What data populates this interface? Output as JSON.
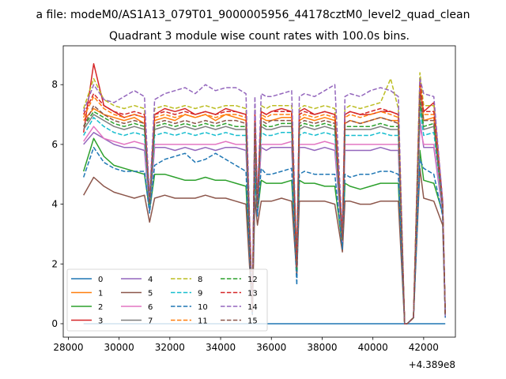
{
  "figure": {
    "suptitle": "a file: modeM0/AS1A13_079T01_9000005956_44178cztM0_level2_quad_clean",
    "title": "Quadrant 3 module wise count rates with 100.0s bins.",
    "x_offset_label": "+4.389e8"
  },
  "chart_data": {
    "type": "line",
    "title": "Quadrant 3 module wise count rates with 100.0s bins.",
    "xlabel": "",
    "ylabel": "",
    "xlim": [
      27800,
      43250
    ],
    "ylim": [
      -0.45,
      9.3
    ],
    "x_offset": 438900000,
    "xticks": [
      28000,
      30000,
      32000,
      34000,
      36000,
      38000,
      40000,
      42000
    ],
    "yticks": [
      0,
      2,
      4,
      6,
      8
    ],
    "grid": false,
    "legend_position": "lower-left",
    "legend_ncol": 4,
    "x": [
      28600,
      29000,
      29400,
      29800,
      30200,
      30600,
      31000,
      31200,
      31400,
      31800,
      32200,
      32600,
      33000,
      33400,
      33800,
      34200,
      34600,
      35000,
      35250,
      35350,
      35450,
      35600,
      35800,
      36000,
      36400,
      36800,
      37000,
      37100,
      37300,
      37700,
      38100,
      38500,
      38800,
      38900,
      39100,
      39500,
      39900,
      40300,
      40700,
      41000,
      41250,
      41350,
      41600,
      41850,
      42000,
      42400,
      42750,
      42850
    ],
    "series": [
      {
        "name": "0",
        "style": "solid",
        "color": "#1f77b4",
        "values": [
          0,
          0,
          0,
          0,
          0,
          0,
          0,
          0,
          0,
          0,
          0,
          0,
          0,
          0,
          0,
          0,
          0,
          0,
          0,
          0,
          0,
          0,
          0,
          0,
          0,
          0,
          0,
          0,
          0,
          0,
          0,
          0,
          0,
          0,
          0,
          0,
          0,
          0,
          0,
          0,
          0,
          0,
          0,
          0,
          0,
          0,
          0,
          0
        ]
      },
      {
        "name": "1",
        "style": "solid",
        "color": "#ff7f0e",
        "values": [
          6.8,
          7.2,
          7.0,
          6.9,
          6.8,
          6.9,
          6.7,
          4.0,
          6.8,
          6.9,
          6.8,
          7.0,
          6.9,
          7.0,
          6.8,
          7.0,
          6.9,
          6.8,
          0.4,
          6.8,
          4.0,
          6.9,
          6.8,
          6.8,
          6.9,
          6.9,
          1.8,
          6.8,
          6.9,
          6.8,
          6.9,
          6.8,
          2.8,
          6.7,
          6.8,
          6.7,
          6.8,
          6.9,
          6.8,
          6.8,
          0.0,
          0.0,
          0.2,
          8.1,
          6.8,
          6.9,
          4.0,
          0.3
        ]
      },
      {
        "name": "2",
        "style": "solid",
        "color": "#2ca02c",
        "values": [
          5.1,
          6.2,
          5.6,
          5.3,
          5.2,
          5.1,
          5.0,
          3.8,
          5.0,
          5.0,
          4.9,
          4.8,
          4.8,
          4.9,
          4.8,
          4.8,
          4.7,
          4.6,
          0.4,
          4.9,
          3.7,
          4.8,
          4.7,
          4.7,
          4.7,
          4.8,
          1.8,
          4.8,
          4.7,
          4.7,
          4.6,
          4.6,
          2.6,
          4.7,
          4.6,
          4.5,
          4.6,
          4.7,
          4.7,
          4.7,
          0.0,
          0.0,
          0.2,
          5.8,
          4.8,
          4.7,
          3.7,
          0.3
        ]
      },
      {
        "name": "3",
        "style": "solid",
        "color": "#d62728",
        "values": [
          6.4,
          8.7,
          7.3,
          7.1,
          6.9,
          7.0,
          6.9,
          4.1,
          7.0,
          7.2,
          7.1,
          7.2,
          7.0,
          7.1,
          7.0,
          7.2,
          7.1,
          7.0,
          0.4,
          7.0,
          4.0,
          7.1,
          7.0,
          7.1,
          7.2,
          7.1,
          1.9,
          7.1,
          7.2,
          7.0,
          7.1,
          7.0,
          2.9,
          7.0,
          7.1,
          7.0,
          7.0,
          7.1,
          7.1,
          7.0,
          0.0,
          0.0,
          0.2,
          7.8,
          7.1,
          7.4,
          4.1,
          0.3
        ]
      },
      {
        "name": "4",
        "style": "solid",
        "color": "#9467bd",
        "values": [
          6.0,
          6.4,
          6.2,
          6.0,
          5.9,
          5.9,
          5.8,
          3.8,
          5.9,
          5.9,
          5.8,
          5.9,
          5.8,
          5.9,
          5.8,
          5.9,
          5.9,
          5.8,
          0.3,
          5.8,
          3.7,
          5.9,
          5.8,
          5.9,
          5.9,
          5.9,
          1.7,
          5.9,
          5.9,
          5.8,
          5.9,
          5.8,
          2.7,
          5.8,
          5.8,
          5.8,
          5.8,
          5.9,
          5.8,
          5.8,
          0.0,
          0.0,
          0.2,
          6.8,
          5.9,
          5.9,
          3.7,
          0.2
        ]
      },
      {
        "name": "5",
        "style": "solid",
        "color": "#8c564b",
        "values": [
          4.3,
          4.9,
          4.6,
          4.4,
          4.3,
          4.2,
          4.3,
          3.4,
          4.2,
          4.3,
          4.2,
          4.2,
          4.2,
          4.3,
          4.2,
          4.2,
          4.1,
          4.0,
          0.3,
          4.2,
          3.3,
          4.1,
          4.1,
          4.1,
          4.2,
          4.1,
          1.6,
          4.1,
          4.1,
          4.1,
          4.1,
          4.0,
          2.4,
          4.1,
          4.1,
          4.0,
          4.0,
          4.1,
          4.1,
          4.1,
          0.0,
          0.0,
          0.2,
          5.2,
          4.2,
          4.1,
          3.3,
          0.3
        ]
      },
      {
        "name": "6",
        "style": "solid",
        "color": "#e377c2",
        "values": [
          6.1,
          6.6,
          6.2,
          6.1,
          6.0,
          6.1,
          6.0,
          3.9,
          6.0,
          6.0,
          6.0,
          6.0,
          6.0,
          6.0,
          6.0,
          6.1,
          6.0,
          6.0,
          0.4,
          6.0,
          3.8,
          6.0,
          6.0,
          6.0,
          6.0,
          6.1,
          1.8,
          6.0,
          6.0,
          6.0,
          6.1,
          6.0,
          2.7,
          6.0,
          6.0,
          6.0,
          6.0,
          6.0,
          6.0,
          6.0,
          0.0,
          0.0,
          0.2,
          6.6,
          6.0,
          6.0,
          3.8,
          0.3
        ]
      },
      {
        "name": "7",
        "style": "solid",
        "color": "#7f7f7f",
        "values": [
          6.5,
          7.0,
          6.8,
          6.6,
          6.5,
          6.6,
          6.5,
          4.0,
          6.5,
          6.6,
          6.5,
          6.6,
          6.5,
          6.6,
          6.5,
          6.6,
          6.5,
          6.5,
          0.4,
          6.5,
          3.9,
          6.6,
          6.5,
          6.5,
          6.6,
          6.6,
          1.8,
          6.5,
          6.6,
          6.5,
          6.6,
          6.5,
          2.8,
          6.5,
          6.5,
          6.5,
          6.5,
          6.6,
          6.5,
          6.5,
          0.0,
          0.0,
          0.2,
          7.4,
          6.5,
          6.6,
          3.9,
          0.3
        ]
      },
      {
        "name": "8",
        "style": "dashed",
        "color": "#bcbd22",
        "values": [
          7.2,
          8.2,
          7.5,
          7.3,
          7.2,
          7.3,
          7.2,
          4.1,
          7.2,
          7.3,
          7.2,
          7.3,
          7.2,
          7.3,
          7.2,
          7.3,
          7.3,
          7.2,
          0.4,
          7.2,
          4.0,
          7.3,
          7.2,
          7.3,
          7.3,
          7.3,
          1.9,
          7.2,
          7.3,
          7.2,
          7.3,
          7.2,
          2.9,
          7.2,
          7.3,
          7.2,
          7.3,
          7.4,
          8.2,
          7.2,
          0.0,
          0.0,
          0.2,
          8.4,
          7.3,
          7.3,
          4.0,
          0.3
        ]
      },
      {
        "name": "9",
        "style": "dashed",
        "color": "#17becf",
        "values": [
          6.3,
          6.9,
          6.6,
          6.4,
          6.3,
          6.4,
          6.3,
          3.9,
          6.3,
          6.4,
          6.3,
          6.4,
          6.3,
          6.4,
          6.3,
          6.4,
          6.3,
          6.3,
          0.4,
          6.3,
          3.9,
          6.4,
          6.3,
          6.3,
          6.4,
          6.4,
          1.8,
          6.3,
          6.4,
          6.3,
          6.4,
          6.3,
          2.8,
          6.3,
          6.3,
          6.3,
          6.3,
          6.4,
          6.3,
          6.3,
          0.0,
          0.0,
          0.2,
          7.2,
          6.3,
          6.4,
          3.9,
          0.3
        ]
      },
      {
        "name": "10",
        "style": "dashed",
        "color": "#1f77b4",
        "values": [
          4.9,
          5.9,
          5.4,
          5.2,
          5.1,
          5.1,
          5.1,
          3.7,
          5.3,
          5.5,
          5.6,
          5.7,
          5.4,
          5.5,
          5.7,
          5.5,
          5.3,
          5.1,
          0.3,
          5.2,
          3.6,
          5.2,
          5.0,
          5.0,
          5.1,
          5.2,
          1.3,
          5.0,
          5.1,
          5.0,
          5.0,
          5.0,
          2.5,
          5.0,
          4.9,
          5.0,
          5.0,
          5.1,
          5.1,
          5.0,
          0.0,
          0.0,
          0.2,
          5.5,
          5.2,
          5.0,
          3.6,
          0.2
        ]
      },
      {
        "name": "11",
        "style": "dashed",
        "color": "#ff7f0e",
        "values": [
          6.9,
          7.6,
          7.2,
          7.0,
          6.9,
          7.0,
          6.9,
          4.0,
          6.9,
          7.0,
          6.9,
          7.0,
          6.9,
          7.0,
          6.9,
          7.0,
          7.0,
          6.9,
          0.4,
          6.9,
          4.0,
          7.0,
          6.9,
          7.0,
          7.0,
          7.0,
          1.9,
          6.9,
          7.0,
          6.9,
          7.0,
          6.9,
          2.9,
          6.9,
          7.0,
          6.9,
          7.0,
          7.1,
          7.0,
          6.9,
          0.0,
          0.0,
          0.2,
          8.0,
          7.0,
          7.0,
          4.0,
          0.3
        ]
      },
      {
        "name": "12",
        "style": "dashed",
        "color": "#2ca02c",
        "values": [
          6.6,
          7.1,
          6.9,
          6.7,
          6.6,
          6.7,
          6.6,
          4.0,
          6.6,
          6.7,
          6.6,
          6.7,
          6.6,
          6.7,
          6.6,
          6.7,
          6.6,
          6.6,
          0.4,
          6.6,
          3.9,
          6.7,
          6.6,
          6.6,
          6.7,
          6.7,
          1.8,
          6.6,
          6.7,
          6.6,
          6.7,
          6.6,
          2.8,
          6.6,
          6.6,
          6.6,
          6.6,
          6.7,
          6.6,
          6.6,
          0.0,
          0.0,
          0.2,
          7.5,
          6.6,
          6.7,
          3.9,
          0.3
        ]
      },
      {
        "name": "13",
        "style": "dashed",
        "color": "#d62728",
        "values": [
          7.0,
          7.7,
          7.3,
          7.1,
          7.0,
          7.1,
          7.0,
          4.1,
          7.0,
          7.1,
          7.0,
          7.1,
          7.0,
          7.1,
          7.0,
          7.1,
          7.1,
          7.0,
          0.4,
          7.0,
          4.0,
          7.1,
          7.0,
          7.1,
          7.1,
          7.1,
          1.9,
          7.0,
          7.1,
          7.0,
          7.1,
          7.0,
          2.9,
          7.0,
          7.1,
          7.0,
          7.1,
          7.2,
          7.1,
          7.0,
          0.0,
          0.0,
          0.2,
          8.1,
          7.1,
          7.1,
          4.0,
          0.3
        ]
      },
      {
        "name": "14",
        "style": "dashed",
        "color": "#9467bd",
        "values": [
          7.1,
          8.0,
          7.5,
          7.4,
          7.6,
          7.8,
          7.6,
          4.2,
          7.5,
          7.7,
          7.8,
          7.9,
          7.7,
          8.0,
          7.8,
          7.9,
          7.9,
          7.7,
          0.4,
          7.6,
          4.1,
          7.7,
          7.6,
          7.6,
          7.7,
          7.8,
          2.0,
          7.6,
          7.7,
          7.6,
          7.8,
          8.0,
          3.0,
          7.6,
          7.7,
          7.6,
          7.8,
          7.9,
          7.8,
          7.6,
          0.0,
          0.0,
          0.2,
          8.2,
          7.7,
          7.6,
          4.1,
          0.3
        ]
      },
      {
        "name": "15",
        "style": "dashed",
        "color": "#8c564b",
        "values": [
          6.6,
          7.3,
          7.0,
          6.8,
          6.7,
          6.8,
          6.7,
          4.0,
          6.7,
          6.8,
          6.7,
          6.8,
          6.7,
          6.8,
          6.7,
          6.8,
          6.8,
          6.7,
          0.4,
          6.7,
          3.9,
          6.8,
          6.7,
          6.8,
          6.8,
          6.8,
          1.9,
          6.7,
          6.8,
          6.7,
          6.8,
          6.7,
          2.8,
          6.7,
          6.8,
          6.7,
          6.8,
          6.9,
          6.8,
          6.7,
          0.0,
          0.0,
          0.2,
          7.7,
          6.8,
          6.8,
          3.9,
          0.3
        ]
      }
    ]
  }
}
